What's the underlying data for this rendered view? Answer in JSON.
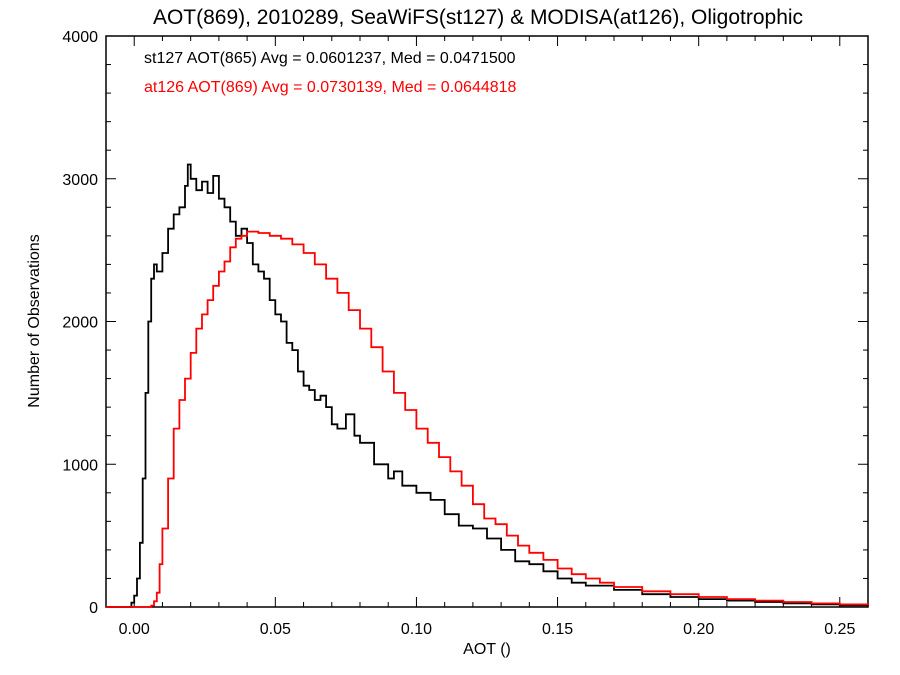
{
  "chart_data": {
    "type": "line",
    "title": "AOT(869), 2010289, SeaWiFS(st127) & MODISA(at126), Oligotrophic",
    "xlabel": "AOT ()",
    "ylabel": "Number of Observations",
    "xlim": [
      -0.01,
      0.26
    ],
    "ylim": [
      0,
      4000
    ],
    "x_ticks": [
      0.0,
      0.05,
      0.1,
      0.15,
      0.2,
      0.25
    ],
    "x_tick_labels": [
      "0.00",
      "0.05",
      "0.10",
      "0.15",
      "0.20",
      "0.25"
    ],
    "y_ticks": [
      0,
      1000,
      2000,
      3000,
      4000
    ],
    "y_tick_labels": [
      "0",
      "1000",
      "2000",
      "3000",
      "4000"
    ],
    "grid": false,
    "legend": "top-left",
    "annotations": [
      {
        "text": "st127 AOT(865) Avg = 0.0601237, Med = 0.0471500",
        "color": "#000000"
      },
      {
        "text": "at126 AOT(869) Avg = 0.0730139, Med = 0.0644818",
        "color": "#ff0000"
      }
    ],
    "series": [
      {
        "color": "#000000",
        "x": [
          -0.01,
          -0.004,
          -0.001,
          0.0,
          0.001,
          0.002,
          0.003,
          0.004,
          0.005,
          0.006,
          0.007,
          0.008,
          0.01,
          0.012,
          0.014,
          0.016,
          0.018,
          0.019,
          0.02,
          0.022,
          0.024,
          0.026,
          0.028,
          0.03,
          0.032,
          0.034,
          0.036,
          0.038,
          0.04,
          0.042,
          0.044,
          0.046,
          0.048,
          0.05,
          0.052,
          0.054,
          0.056,
          0.058,
          0.06,
          0.062,
          0.064,
          0.066,
          0.068,
          0.07,
          0.072,
          0.075,
          0.078,
          0.08,
          0.085,
          0.09,
          0.092,
          0.095,
          0.1,
          0.105,
          0.11,
          0.115,
          0.12,
          0.125,
          0.13,
          0.135,
          0.14,
          0.145,
          0.15,
          0.155,
          0.16,
          0.17,
          0.18,
          0.19,
          0.2,
          0.21,
          0.22,
          0.23,
          0.24,
          0.25,
          0.26
        ],
        "values": [
          0,
          0,
          30,
          80,
          200,
          450,
          900,
          1500,
          2000,
          2300,
          2400,
          2350,
          2480,
          2650,
          2750,
          2800,
          2950,
          3100,
          3000,
          2920,
          2980,
          2900,
          3020,
          2860,
          2800,
          2700,
          2600,
          2650,
          2550,
          2400,
          2350,
          2300,
          2150,
          2050,
          2000,
          1850,
          1800,
          1650,
          1550,
          1520,
          1450,
          1480,
          1400,
          1280,
          1250,
          1350,
          1200,
          1150,
          1000,
          900,
          950,
          850,
          800,
          750,
          650,
          570,
          550,
          480,
          400,
          320,
          300,
          250,
          200,
          170,
          150,
          120,
          90,
          70,
          55,
          45,
          35,
          25,
          18,
          12,
          8
        ]
      },
      {
        "color": "#ff0000",
        "x": [
          -0.01,
          -0.005,
          0.0,
          0.004,
          0.006,
          0.007,
          0.008,
          0.009,
          0.01,
          0.012,
          0.014,
          0.016,
          0.018,
          0.02,
          0.022,
          0.024,
          0.026,
          0.028,
          0.03,
          0.032,
          0.034,
          0.036,
          0.038,
          0.04,
          0.044,
          0.048,
          0.052,
          0.056,
          0.06,
          0.064,
          0.068,
          0.072,
          0.076,
          0.08,
          0.084,
          0.088,
          0.092,
          0.096,
          0.1,
          0.104,
          0.108,
          0.112,
          0.116,
          0.12,
          0.124,
          0.128,
          0.132,
          0.136,
          0.14,
          0.145,
          0.15,
          0.155,
          0.16,
          0.165,
          0.17,
          0.18,
          0.19,
          0.2,
          0.21,
          0.22,
          0.23,
          0.24,
          0.25,
          0.26
        ],
        "values": [
          0,
          0,
          0,
          0,
          10,
          40,
          100,
          300,
          550,
          900,
          1250,
          1450,
          1600,
          1780,
          1950,
          2050,
          2150,
          2250,
          2350,
          2420,
          2520,
          2580,
          2600,
          2630,
          2620,
          2600,
          2580,
          2540,
          2480,
          2400,
          2300,
          2200,
          2080,
          1950,
          1820,
          1650,
          1500,
          1380,
          1250,
          1150,
          1050,
          950,
          850,
          720,
          620,
          580,
          500,
          430,
          380,
          330,
          270,
          230,
          200,
          170,
          140,
          110,
          90,
          70,
          55,
          45,
          35,
          25,
          18,
          12
        ]
      }
    ]
  }
}
